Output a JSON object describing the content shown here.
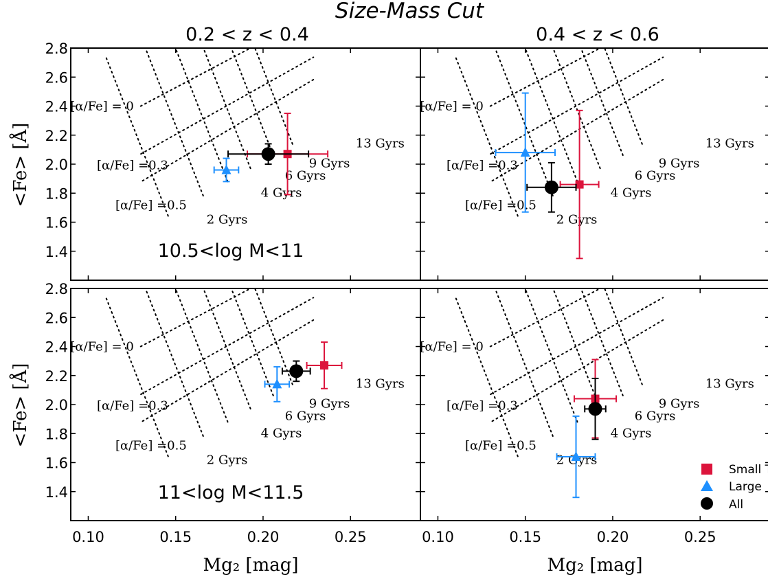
{
  "title": "Size-Mass Cut",
  "x_axis_label": "Mg₂  [mag]",
  "y_axis_label": "<Fe> [Å]",
  "columns": [
    {
      "title": "0.2 < z < 0.4"
    },
    {
      "title": "0.4 < z < 0.6"
    }
  ],
  "rows": [
    {
      "label": "10.5<log M<11"
    },
    {
      "label": "11<log M<11.5"
    }
  ],
  "grid_labels": {
    "alpha_labels": [
      "[α/Fe] = 0",
      "[α/Fe] =0.3",
      "[α/Fe] =0.5"
    ],
    "age_labels": [
      "2 Gyrs",
      "4 Gyrs",
      "6 Gyrs",
      "9 Gyrs",
      "13 Gyrs"
    ]
  },
  "legend": {
    "position": "lower-right",
    "entries": [
      {
        "label": "Small T",
        "marker": "square",
        "color": "#dc143c"
      },
      {
        "label": "Large",
        "marker": "triangle",
        "color": "#1e90ff"
      },
      {
        "label": "All",
        "marker": "circle",
        "color": "#000000"
      }
    ]
  },
  "colors": {
    "small": "#dc143c",
    "large": "#1e90ff",
    "all": "#000000",
    "grid": "#000000"
  },
  "chart_data": {
    "type": "scatter",
    "layout": "2x2 panel grid, shared axes",
    "xlim": [
      0.09,
      0.29
    ],
    "ylim": [
      1.2,
      2.8
    ],
    "xticks": [
      "0.10",
      "0.15",
      "0.20",
      "0.25"
    ],
    "yticks": [
      "1.4",
      "1.6",
      "1.8",
      "2.0",
      "2.2",
      "2.4",
      "2.6",
      "2.8"
    ],
    "grid_lines": "dotted model grid ([α/Fe] 0, 0.3, 0.5; ages 2, 4, 6, 9, 13 Gyrs)",
    "panels": [
      {
        "row": 0,
        "col": 0,
        "grid_anchor": [
          0.13,
          2.4
        ],
        "points": [
          {
            "series": "Small T",
            "x": 0.214,
            "y": 2.07,
            "xerr": 0.023,
            "yerr": 0.28
          },
          {
            "series": "Large",
            "x": 0.179,
            "y": 1.96,
            "xerr": 0.007,
            "yerr": 0.08
          },
          {
            "series": "All",
            "x": 0.203,
            "y": 2.07,
            "xerr": 0.023,
            "yerr": 0.07
          }
        ]
      },
      {
        "row": 0,
        "col": 1,
        "grid_anchor": [
          0.13,
          2.4
        ],
        "points": [
          {
            "series": "Small T",
            "x": 0.181,
            "y": 1.86,
            "xerr": 0.011,
            "yerr": 0.51
          },
          {
            "series": "Large",
            "x": 0.15,
            "y": 2.08,
            "xerr": 0.017,
            "yerr": 0.41
          },
          {
            "series": "All",
            "x": 0.165,
            "y": 1.84,
            "xerr": 0.014,
            "yerr": 0.17
          }
        ]
      },
      {
        "row": 1,
        "col": 0,
        "grid_anchor": [
          0.13,
          2.4
        ],
        "points": [
          {
            "series": "Small T",
            "x": 0.235,
            "y": 2.27,
            "xerr": 0.01,
            "yerr": 0.16
          },
          {
            "series": "Large",
            "x": 0.208,
            "y": 2.14,
            "xerr": 0.007,
            "yerr": 0.12
          },
          {
            "series": "All",
            "x": 0.219,
            "y": 2.23,
            "xerr": 0.008,
            "yerr": 0.07
          }
        ]
      },
      {
        "row": 1,
        "col": 1,
        "grid_anchor": [
          0.13,
          2.4
        ],
        "points": [
          {
            "series": "Small T",
            "x": 0.19,
            "y": 2.04,
            "xerr": 0.012,
            "yerr": 0.27
          },
          {
            "series": "Large",
            "x": 0.179,
            "y": 1.64,
            "xerr": 0.011,
            "yerr": 0.28
          },
          {
            "series": "All",
            "x": 0.19,
            "y": 1.97,
            "xerr": 0.006,
            "yerr": 0.21
          }
        ]
      }
    ]
  }
}
